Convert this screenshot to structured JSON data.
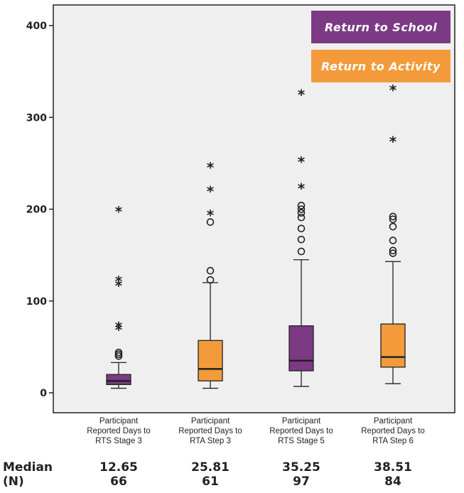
{
  "chart_data": {
    "type": "boxplot",
    "yticks": [
      0,
      100,
      200,
      300,
      400
    ],
    "ylim": [
      -20,
      425
    ],
    "legend": [
      {
        "label": "Return to School",
        "color": "#7b3a83"
      },
      {
        "label": "Return to Activity",
        "color": "#f39b3a"
      }
    ],
    "categories": [
      "Participant Reported Days to RTS Stage 3",
      "Participant Reported Days to RTA Step 3",
      "Participant Reported Days to RTS Stage 5",
      "Participant Reported Days to RTA Step 6"
    ],
    "category_lines": [
      [
        "Participant",
        "Reported Days to",
        "RTS Stage 3"
      ],
      [
        "Participant",
        "Reported Days to",
        "RTA Step 3"
      ],
      [
        "Participant",
        "Reported Days to",
        "RTS Stage 5"
      ],
      [
        "Participant",
        "Reported Days to",
        "RTA Step 6"
      ]
    ],
    "boxes": [
      {
        "group": "Return to School",
        "color": "#7b3a83",
        "whisker_low": 5,
        "q1": 9,
        "median": 13,
        "q3": 20,
        "whisker_high": 33,
        "outliers": [
          40,
          42,
          44
        ],
        "extremes": [
          70,
          73,
          118,
          123,
          199
        ]
      },
      {
        "group": "Return to Activity",
        "color": "#f39b3a",
        "whisker_low": 5,
        "q1": 13,
        "median": 26,
        "q3": 57,
        "whisker_high": 120,
        "outliers": [
          123,
          133,
          186
        ],
        "extremes": [
          195,
          221,
          247
        ]
      },
      {
        "group": "Return to School",
        "color": "#7b3a83",
        "whisker_low": 7,
        "q1": 24,
        "median": 35,
        "q3": 73,
        "whisker_high": 145,
        "outliers": [
          154,
          167,
          179,
          191,
          196,
          200,
          204
        ],
        "extremes": [
          224,
          253,
          326
        ]
      },
      {
        "group": "Return to Activity",
        "color": "#f39b3a",
        "whisker_low": 10,
        "q1": 28,
        "median": 39,
        "q3": 75,
        "whisker_high": 143,
        "outliers": [
          152,
          155,
          166,
          181,
          189,
          192
        ],
        "extremes": [
          275,
          331
        ]
      }
    ],
    "summary": {
      "median_label": "Median",
      "n_label": "(N)",
      "medians": [
        "12.65",
        "25.81",
        "35.25",
        "38.51"
      ],
      "ns": [
        "66",
        "61",
        "97",
        "84"
      ]
    }
  }
}
